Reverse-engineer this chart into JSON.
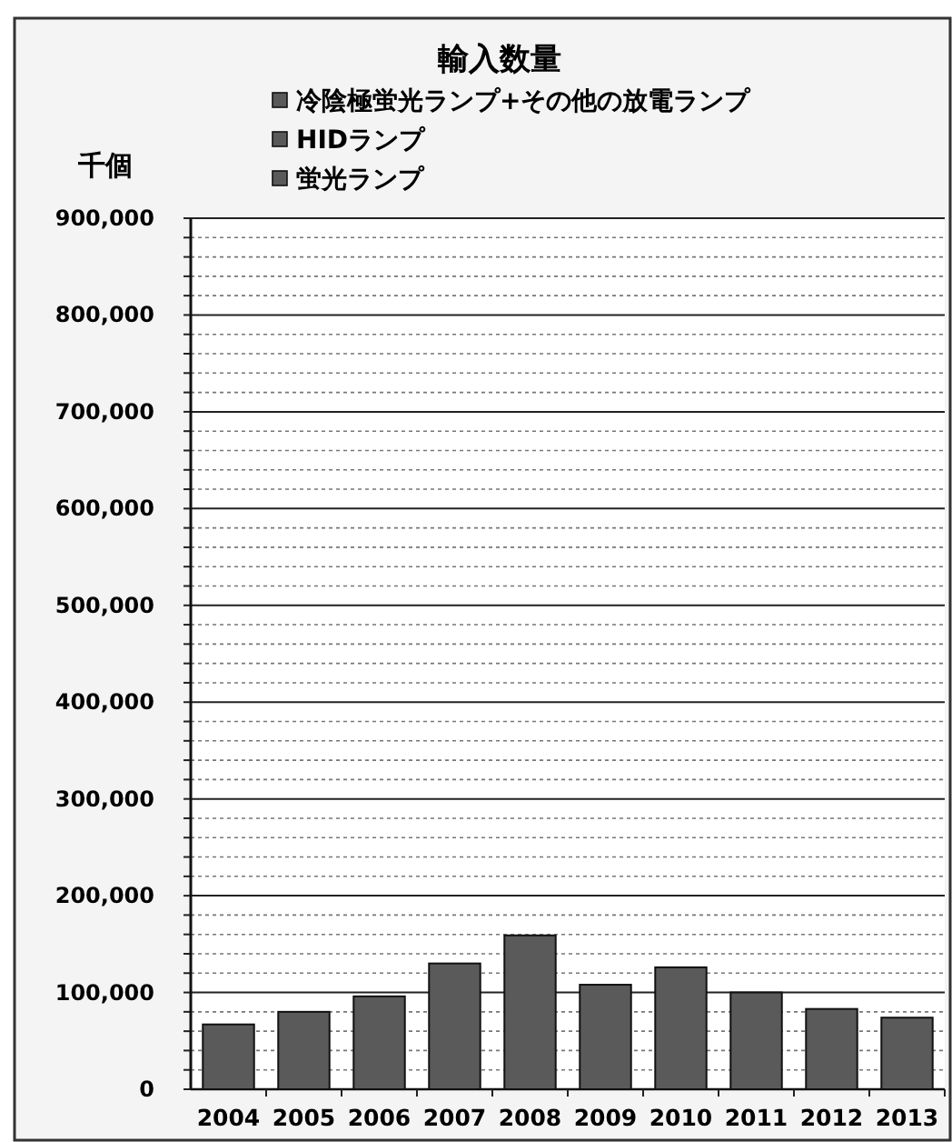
{
  "chart_data": {
    "type": "bar",
    "title": "輸入数量",
    "ylabel": "千個",
    "legend": "top",
    "grid": "y",
    "categories": [
      "2004",
      "2005",
      "2006",
      "2007",
      "2008",
      "2009",
      "2010",
      "2011",
      "2012",
      "2013"
    ],
    "series": [
      {
        "name": "冷陰極蛍光ランプ+その他の放電ランプ",
        "color": "#5a5a5a",
        "values": [
          null,
          null,
          null,
          null,
          null,
          null,
          null,
          null,
          null,
          null
        ]
      },
      {
        "name": "HIDランプ",
        "color": "#5a5a5a",
        "values": [
          null,
          null,
          null,
          null,
          null,
          null,
          null,
          null,
          null,
          null
        ]
      },
      {
        "name": "蛍光ランプ",
        "color": "#5a5a5a",
        "values": [
          67000,
          80000,
          96000,
          130000,
          159000,
          108000,
          126000,
          100000,
          83000,
          74000
        ]
      }
    ],
    "ylim": [
      0,
      900000
    ],
    "yticks": [
      {
        "value": 0,
        "label": "0"
      },
      {
        "value": 20000,
        "label": null
      },
      {
        "value": 40000,
        "label": null
      },
      {
        "value": 60000,
        "label": null
      },
      {
        "value": 80000,
        "label": null
      },
      {
        "value": 100000,
        "label": "100,000"
      },
      {
        "value": 120000,
        "label": null
      },
      {
        "value": 140000,
        "label": null
      },
      {
        "value": 160000,
        "label": null
      },
      {
        "value": 180000,
        "label": null
      },
      {
        "value": 200000,
        "label": "200,000"
      },
      {
        "value": 220000,
        "label": null
      },
      {
        "value": 240000,
        "label": null
      },
      {
        "value": 260000,
        "label": null
      },
      {
        "value": 280000,
        "label": null
      },
      {
        "value": 300000,
        "label": "300,000"
      },
      {
        "value": 320000,
        "label": null
      },
      {
        "value": 340000,
        "label": null
      },
      {
        "value": 360000,
        "label": null
      },
      {
        "value": 380000,
        "label": null
      },
      {
        "value": 400000,
        "label": "400,000"
      },
      {
        "value": 420000,
        "label": null
      },
      {
        "value": 440000,
        "label": null
      },
      {
        "value": 460000,
        "label": null
      },
      {
        "value": 480000,
        "label": null
      },
      {
        "value": 500000,
        "label": "500,000"
      },
      {
        "value": 520000,
        "label": null
      },
      {
        "value": 540000,
        "label": null
      },
      {
        "value": 560000,
        "label": null
      },
      {
        "value": 580000,
        "label": null
      },
      {
        "value": 600000,
        "label": "600,000"
      },
      {
        "value": 620000,
        "label": null
      },
      {
        "value": 640000,
        "label": null
      },
      {
        "value": 660000,
        "label": null
      },
      {
        "value": 680000,
        "label": null
      },
      {
        "value": 700000,
        "label": "700,000"
      },
      {
        "value": 720000,
        "label": null
      },
      {
        "value": 740000,
        "label": null
      },
      {
        "value": 760000,
        "label": null
      },
      {
        "value": 780000,
        "label": null
      },
      {
        "value": 800000,
        "label": "800,000"
      },
      {
        "value": 820000,
        "label": null
      },
      {
        "value": 840000,
        "label": null
      },
      {
        "value": 860000,
        "label": null
      },
      {
        "value": 880000,
        "label": null
      },
      {
        "value": 900000,
        "label": "900,000"
      }
    ]
  }
}
